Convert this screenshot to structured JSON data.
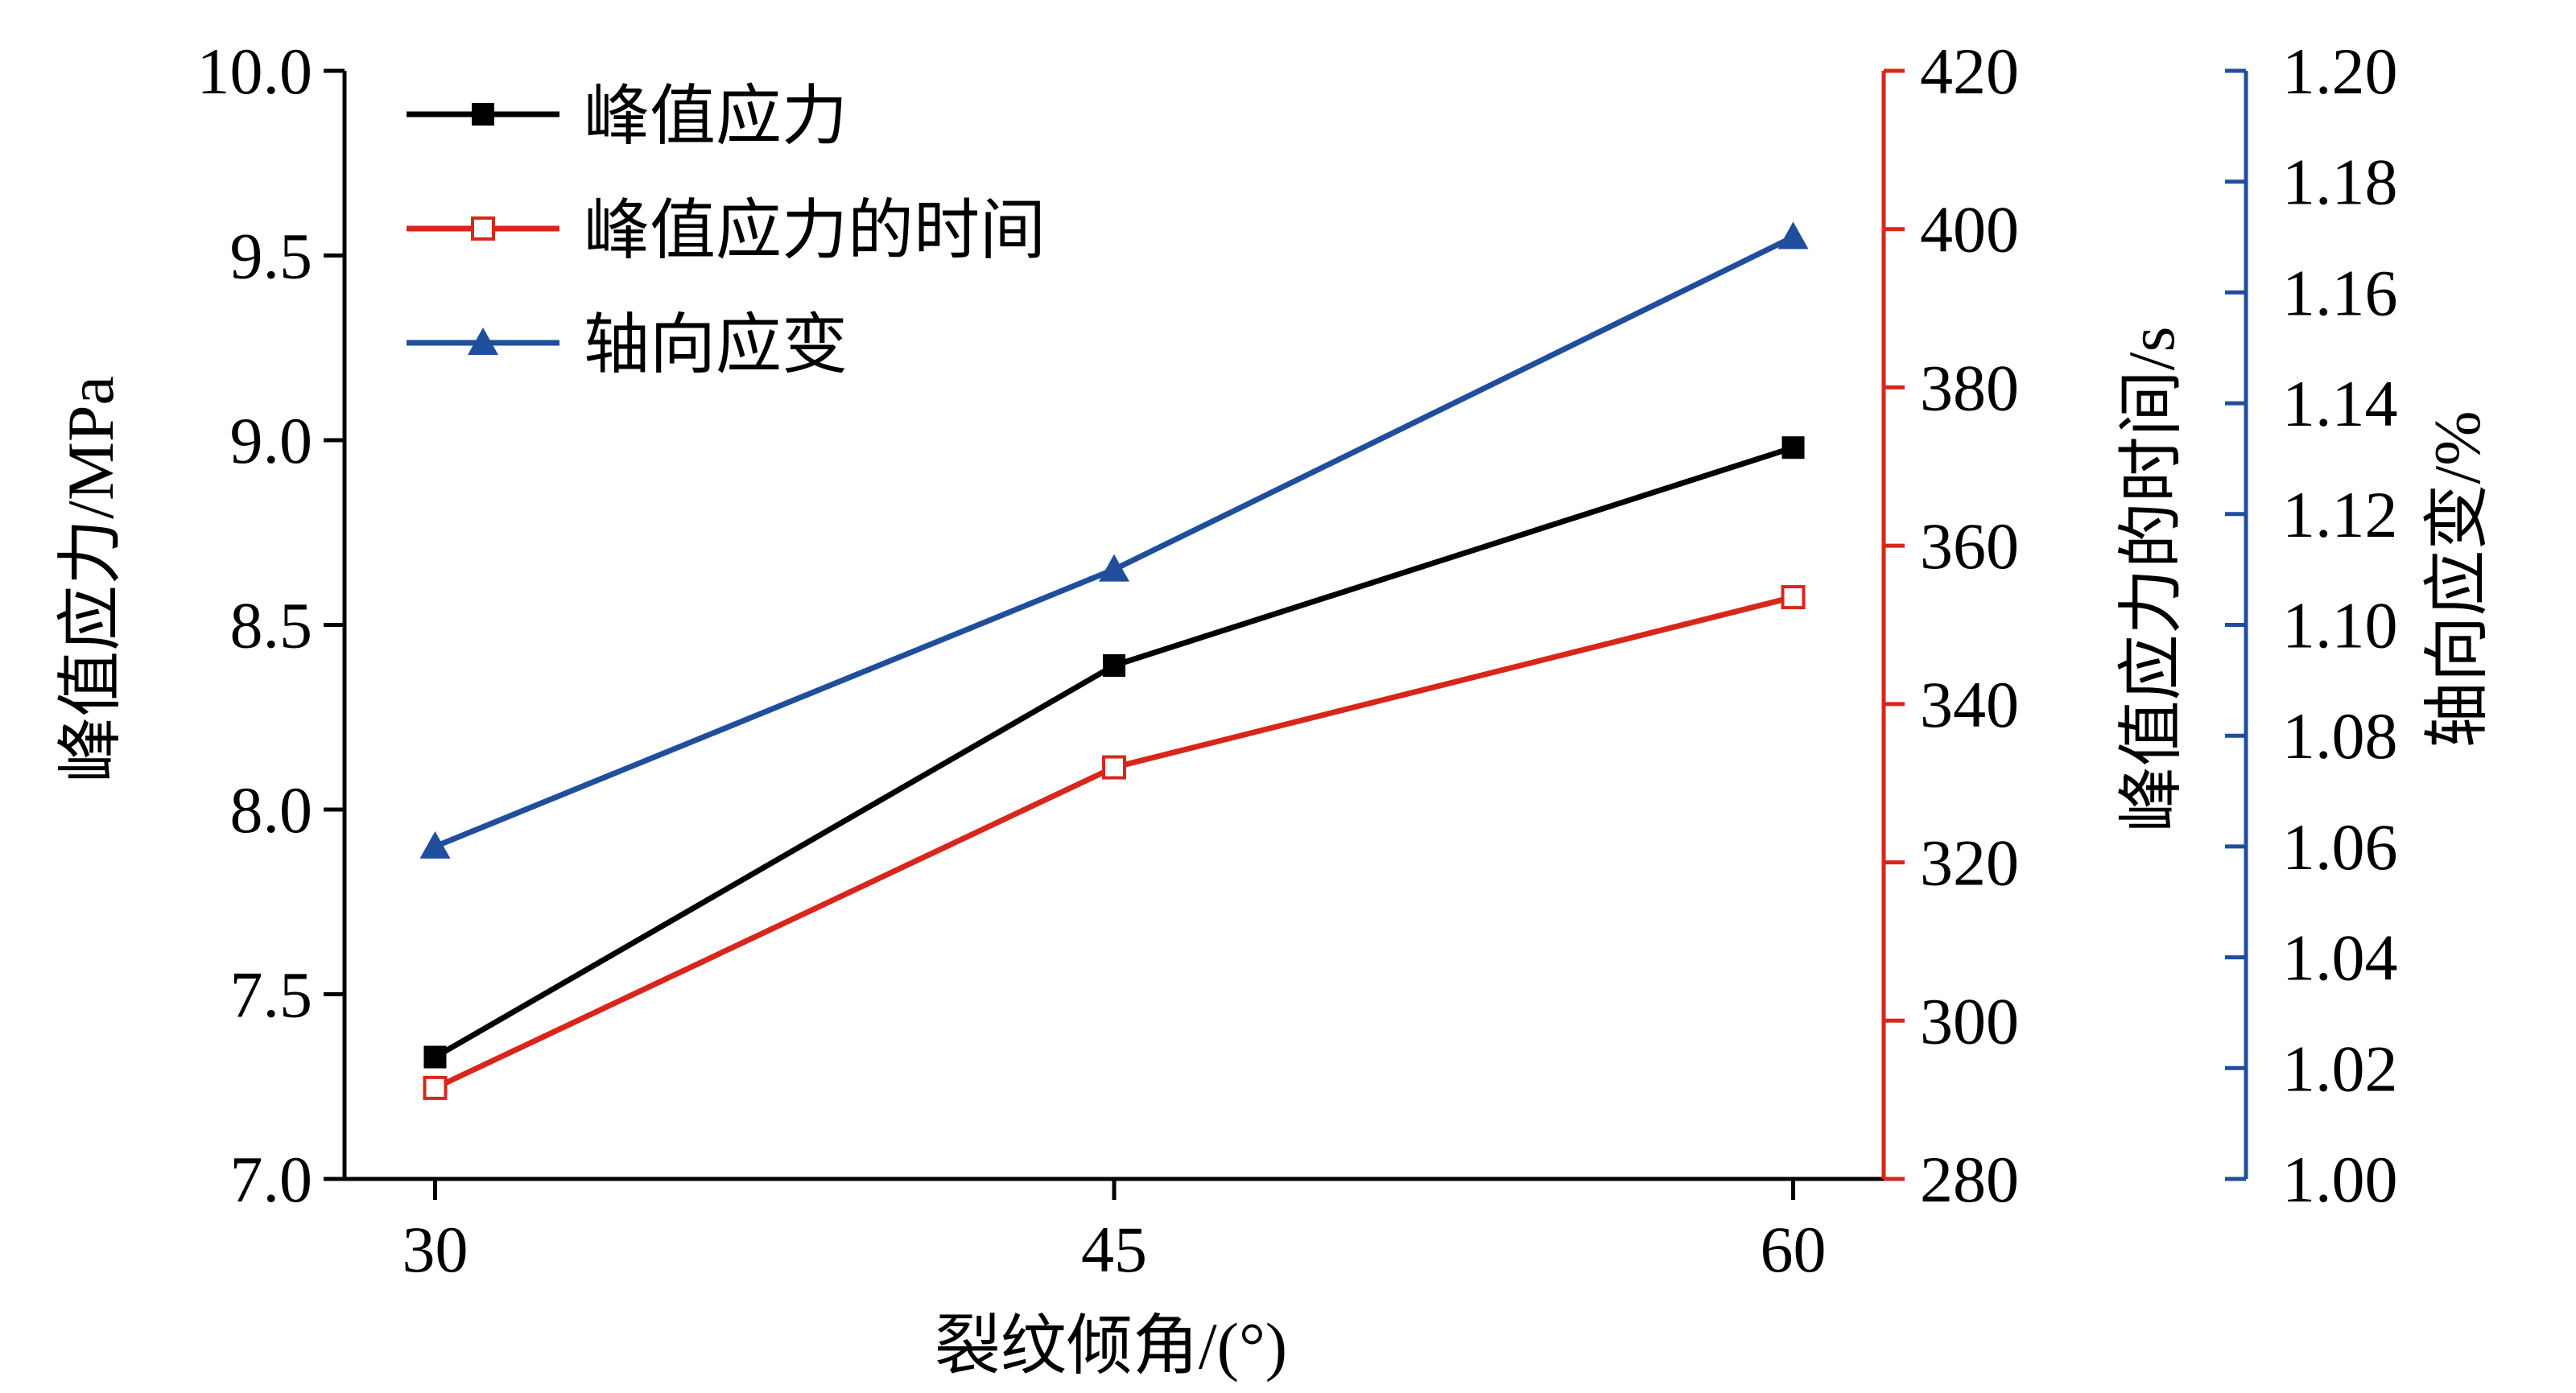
{
  "chart_data": {
    "type": "line",
    "title": "",
    "xlabel": "裂纹倾角/(°)",
    "x": [
      30,
      45,
      60
    ],
    "xtick_labels": [
      "30",
      "45",
      "60"
    ],
    "xlim": [
      28,
      62
    ],
    "grid": false,
    "legend_position": "top-left",
    "axes": {
      "left": {
        "label": "峰值应力/MPa",
        "ylim": [
          7.0,
          10.0
        ],
        "ticks": [
          "7.0",
          "7.5",
          "8.0",
          "8.5",
          "9.0",
          "9.5",
          "10.0"
        ],
        "color": "#000000"
      },
      "right1": {
        "label": "峰值应力的时间/s",
        "ylim": [
          280,
          420
        ],
        "ticks": [
          "280",
          "300",
          "320",
          "340",
          "360",
          "380",
          "400",
          "420"
        ],
        "color": "#d9261c"
      },
      "right2": {
        "label": "轴向应变/%",
        "ylim": [
          1.0,
          1.2
        ],
        "ticks": [
          "1.00",
          "1.02",
          "1.04",
          "1.06",
          "1.08",
          "1.10",
          "1.12",
          "1.14",
          "1.16",
          "1.18",
          "1.20"
        ],
        "color": "#1f4e9c"
      }
    },
    "series": [
      {
        "name": "峰值应力",
        "axis": "left",
        "color": "#000000",
        "marker": "filled-square",
        "values": [
          7.33,
          8.39,
          8.98
        ]
      },
      {
        "name": "峰值应力的时间",
        "axis": "right1",
        "color": "#d9261c",
        "marker": "open-square",
        "values": [
          291.5,
          332,
          353.5
        ]
      },
      {
        "name": "轴向应变",
        "axis": "right2",
        "color": "#1f4e9c",
        "marker": "filled-triangle",
        "values": [
          1.06,
          1.11,
          1.17
        ]
      }
    ]
  }
}
